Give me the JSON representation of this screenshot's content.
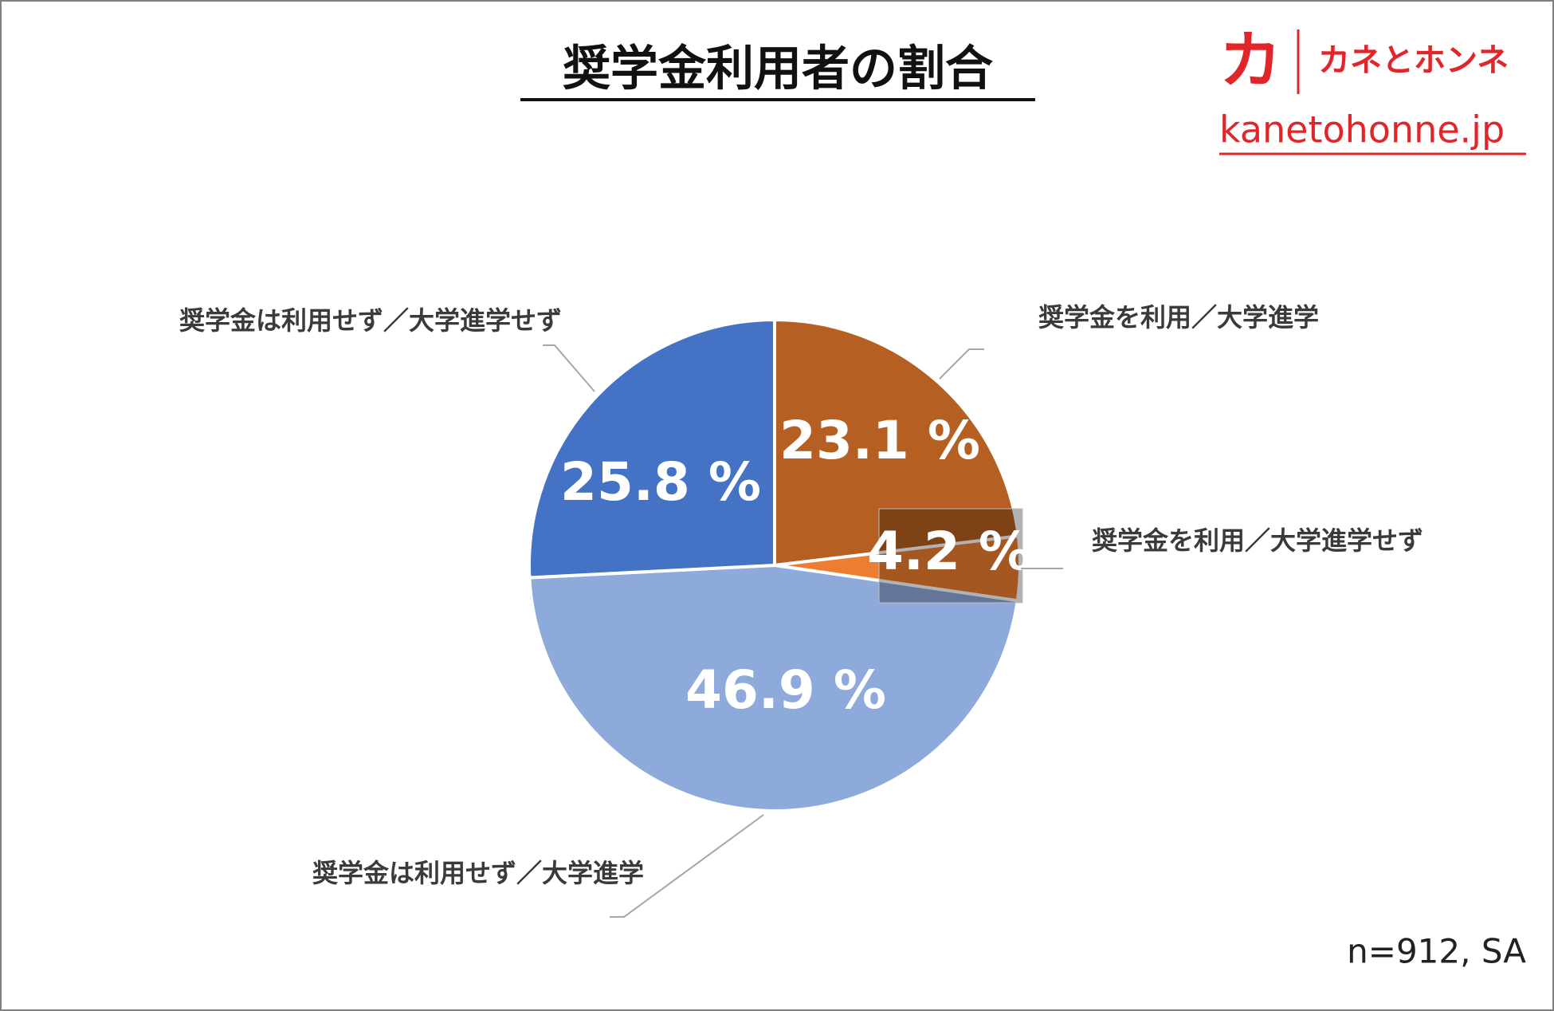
{
  "chart_data": {
    "type": "pie",
    "title": "奨学金利用者の割合",
    "categories": [
      "奨学金を利用／大学進学",
      "奨学金を利用／大学進学せず",
      "奨学金は利用せず／大学進学",
      "奨学金は利用せず／大学進学せず"
    ],
    "values": [
      23.1,
      4.2,
      46.9,
      25.8
    ],
    "value_labels": [
      "23.1 %",
      "4.2 %",
      "46.9 %",
      "25.8 %"
    ],
    "colors": [
      "#b55f22",
      "#ed7d31",
      "#8eaadb",
      "#4472c4"
    ],
    "note": "n=912, SA"
  },
  "logo": {
    "mark": "カ",
    "name": "カネとホンネ",
    "url": "kanetohonne.jp"
  }
}
